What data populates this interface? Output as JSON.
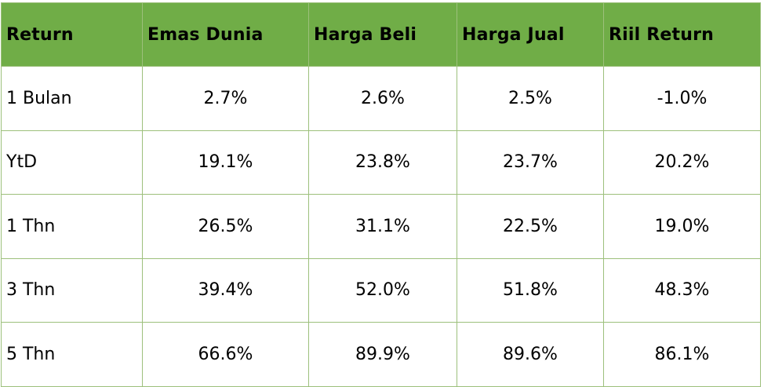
{
  "table": {
    "headers": [
      "Return",
      "Emas Dunia",
      "Harga Beli",
      "Harga Jual",
      "Riil Return"
    ],
    "rows": [
      [
        "1 Bulan",
        "2.7%",
        "2.6%",
        "2.5%",
        "-1.0%"
      ],
      [
        "YtD",
        "19.1%",
        "23.8%",
        "23.7%",
        "20.2%"
      ],
      [
        "1 Thn",
        "26.5%",
        "31.1%",
        "22.5%",
        "19.0%"
      ],
      [
        "3 Thn",
        "39.4%",
        "52.0%",
        "51.8%",
        "48.3%"
      ],
      [
        "5 Thn",
        "66.6%",
        "89.9%",
        "89.6%",
        "86.1%"
      ]
    ]
  },
  "colors": {
    "header_bg": "#70ad47",
    "grid": "#9dc07c"
  }
}
